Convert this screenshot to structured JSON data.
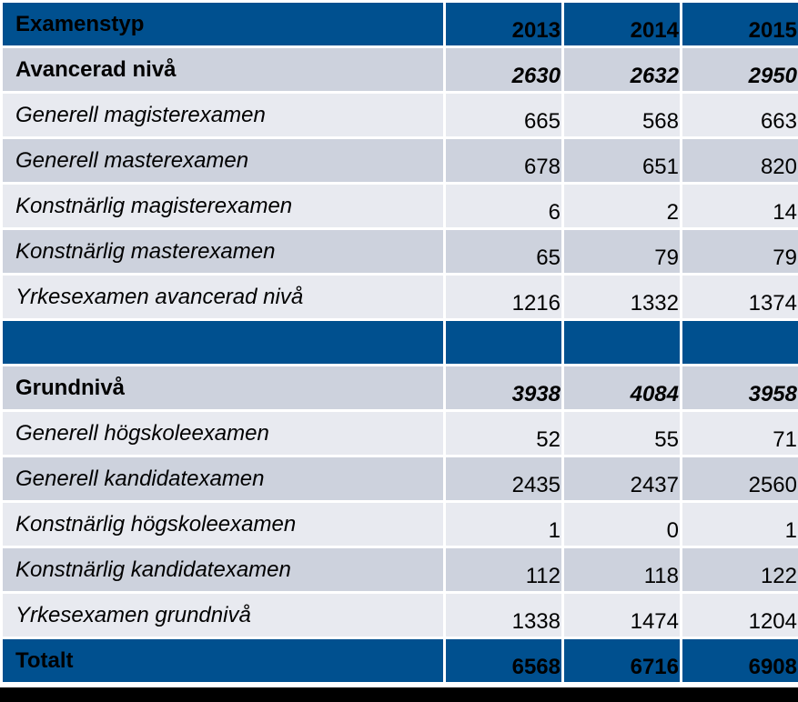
{
  "chart_data": {
    "type": "table",
    "columns": [
      "Examenstyp",
      "2013",
      "2014",
      "2015"
    ],
    "rows": [
      {
        "kind": "group",
        "label": "Avancerad nivå",
        "values": [
          "2630",
          "2632",
          "2950"
        ]
      },
      {
        "kind": "item",
        "label": "Generell magisterexamen",
        "values": [
          "665",
          "568",
          "663"
        ]
      },
      {
        "kind": "item",
        "label": "Generell masterexamen",
        "values": [
          "678",
          "651",
          "820"
        ]
      },
      {
        "kind": "item",
        "label": "Konstnärlig magisterexamen",
        "values": [
          "6",
          "2",
          "14"
        ]
      },
      {
        "kind": "item",
        "label": "Konstnärlig masterexamen",
        "values": [
          "65",
          "79",
          "79"
        ]
      },
      {
        "kind": "item",
        "label": "Yrkesexamen avancerad nivå",
        "values": [
          "1216",
          "1332",
          "1374"
        ]
      },
      {
        "kind": "spacer",
        "label": "",
        "values": [
          "",
          "",
          ""
        ]
      },
      {
        "kind": "group",
        "label": "Grundnivå",
        "values": [
          "3938",
          "4084",
          "3958"
        ]
      },
      {
        "kind": "item",
        "label": "Generell högskoleexamen",
        "values": [
          "52",
          "55",
          "71"
        ]
      },
      {
        "kind": "item",
        "label": "Generell kandidatexamen",
        "values": [
          "2435",
          "2437",
          "2560"
        ]
      },
      {
        "kind": "item",
        "label": "Konstnärlig högskoleexamen",
        "values": [
          "1",
          "0",
          "1"
        ]
      },
      {
        "kind": "item",
        "label": "Konstnärlig kandidatexamen",
        "values": [
          "112",
          "118",
          "122"
        ]
      },
      {
        "kind": "item",
        "label": "Yrkesexamen grundnivå",
        "values": [
          "1338",
          "1474",
          "1204"
        ]
      },
      {
        "kind": "total",
        "label": "Totalt",
        "values": [
          "6568",
          "6716",
          "6908"
        ]
      }
    ]
  },
  "colors": {
    "header": "#00508f",
    "row_dark": "#cdd2dd",
    "row_light": "#e8eaf0"
  }
}
